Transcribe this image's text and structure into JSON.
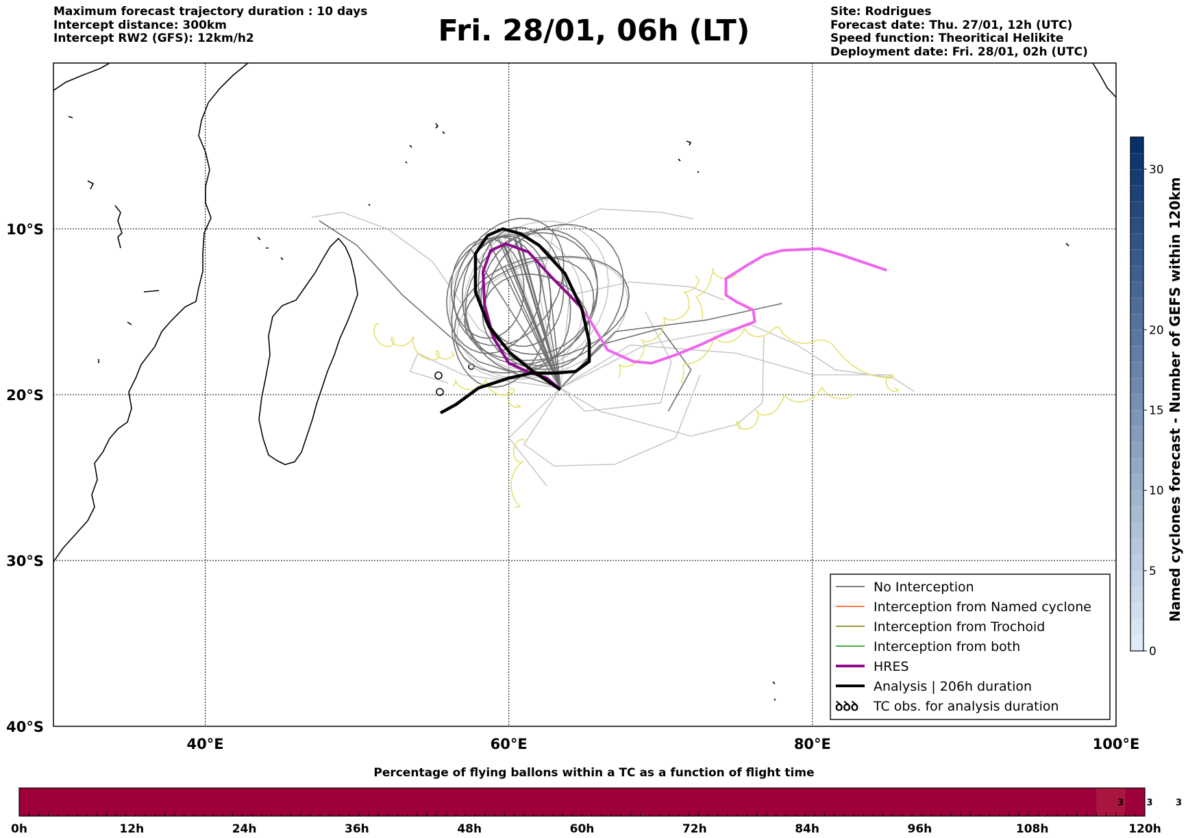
{
  "header": {
    "left": [
      "Maximum forecast trajectory duration : 10 days",
      "Intercept distance: 300km",
      "Intercept RW2 (GFS):  12km/h2"
    ],
    "title": "Fri. 28/01, 06h (LT)",
    "right": [
      "Site: Rodrigues",
      "Forecast date: Thu. 27/01, 12h (UTC)",
      "Speed function: Theoritical Helikite",
      "Deployment date: Fri. 28/01, 02h (UTC)"
    ]
  },
  "map": {
    "lon_range": [
      30,
      100
    ],
    "lat_range": [
      -40,
      0
    ],
    "lon_ticks": [
      {
        "value": 40,
        "label": "40°E"
      },
      {
        "value": 60,
        "label": "60°E"
      },
      {
        "value": 80,
        "label": "80°E"
      },
      {
        "value": 100,
        "label": "100°E"
      }
    ],
    "lat_ticks": [
      {
        "value": -10,
        "label": "10°S"
      },
      {
        "value": -20,
        "label": "20°S"
      },
      {
        "value": -30,
        "label": "30°S"
      },
      {
        "value": -40,
        "label": "40°S"
      }
    ],
    "grid": "dotted",
    "colors": {
      "no_interception": "#6e6e6e",
      "no_interception_light": "#c8c8c8",
      "named_cyclone": "#ff6a2a",
      "trochoid": "#8a8a20",
      "both": "#2aa02a",
      "hres": "#8b0a8b",
      "hres_ext": "#ee66ee",
      "analysis": "#000000",
      "tc_obs": "#e6e070"
    },
    "legend": {
      "position": "bottom-right",
      "items": [
        {
          "label": "No Interception",
          "style": "no_interception"
        },
        {
          "label": "Interception from Named cyclone",
          "style": "named_cyclone"
        },
        {
          "label": "Interception from Trochoid",
          "style": "trochoid"
        },
        {
          "label": "Interception from both",
          "style": "both"
        },
        {
          "label": "HRES",
          "style": "hres"
        },
        {
          "label": "Analysis | 206h duration",
          "style": "analysis"
        },
        {
          "label": "TC obs. for analysis duration",
          "style": "tc_symbol",
          "symbol": "ꝺꝺꝺ"
        }
      ]
    },
    "tracks": {
      "hres": [
        [
          63.3,
          -19.6
        ],
        [
          62.5,
          -19.0
        ],
        [
          61.2,
          -18.6
        ],
        [
          60.0,
          -18.1
        ],
        [
          59.0,
          -16.6
        ],
        [
          58.4,
          -14.6
        ],
        [
          58.3,
          -12.6
        ],
        [
          58.8,
          -11.3
        ],
        [
          59.8,
          -10.9
        ],
        [
          61.3,
          -11.4
        ],
        [
          62.8,
          -12.9
        ],
        [
          64.2,
          -14.2
        ],
        [
          64.6,
          -14.6
        ]
      ],
      "hres_ext": [
        [
          64.6,
          -14.6
        ],
        [
          65.4,
          -15.6
        ],
        [
          66.5,
          -17.3
        ],
        [
          68.2,
          -18.0
        ],
        [
          69.4,
          -18.1
        ],
        [
          71.0,
          -17.6
        ],
        [
          72.6,
          -17.0
        ],
        [
          74.0,
          -16.4
        ],
        [
          75.6,
          -15.8
        ],
        [
          76.2,
          -15.6
        ],
        [
          76.1,
          -14.9
        ],
        [
          75.0,
          -14.4
        ],
        [
          74.3,
          -14.0
        ],
        [
          74.3,
          -13.0
        ],
        [
          75.5,
          -12.3
        ],
        [
          76.8,
          -11.6
        ],
        [
          78.0,
          -11.3
        ],
        [
          80.5,
          -11.2
        ],
        [
          82.0,
          -11.6
        ],
        [
          84.9,
          -12.5
        ]
      ],
      "analysis": [
        [
          55.5,
          -21.1
        ],
        [
          56.5,
          -20.6
        ],
        [
          58.0,
          -19.6
        ],
        [
          60.0,
          -19.0
        ],
        [
          61.5,
          -18.7
        ],
        [
          63.0,
          -18.7
        ],
        [
          64.4,
          -18.6
        ],
        [
          65.3,
          -18.0
        ],
        [
          65.3,
          -16.8
        ],
        [
          64.8,
          -14.8
        ],
        [
          63.7,
          -12.7
        ],
        [
          62.0,
          -11.0
        ],
        [
          60.8,
          -10.3
        ],
        [
          59.6,
          -10.0
        ],
        [
          58.6,
          -10.4
        ],
        [
          57.8,
          -11.5
        ],
        [
          57.8,
          -13.8
        ],
        [
          58.7,
          -15.9
        ],
        [
          60.1,
          -17.5
        ],
        [
          61.6,
          -18.6
        ],
        [
          63.4,
          -19.7
        ]
      ]
    }
  },
  "colorbar_right": {
    "label": "Named cyclones forecast - Number of GEFS within 120km",
    "min": 0,
    "max": 32,
    "ticks": [
      0,
      5,
      10,
      15,
      20,
      30
    ],
    "color_low": "#deebf7",
    "color_high": "#08306b"
  },
  "bottom_bar": {
    "title": "Percentage of flying ballons within a TC as a function of flight time",
    "ticks": [
      "0h",
      "12h",
      "24h",
      "36h",
      "48h",
      "60h",
      "72h",
      "84h",
      "96h",
      "108h",
      "120h"
    ],
    "cell_values": [
      0,
      0,
      0,
      0,
      0,
      0,
      0,
      0,
      0,
      0,
      0,
      0,
      0,
      0,
      0,
      0,
      0,
      0,
      0,
      0,
      0,
      0,
      0,
      0,
      0,
      0,
      0,
      0,
      0,
      0,
      0,
      0,
      0,
      0,
      0,
      0,
      0,
      0,
      0,
      0,
      0,
      0,
      0,
      0,
      0,
      0,
      0,
      0,
      0,
      0,
      0,
      0,
      0,
      0,
      0,
      0,
      0,
      0,
      0,
      0,
      0,
      0,
      0,
      0,
      0,
      0,
      0,
      0,
      0,
      0,
      0,
      0,
      0,
      0,
      0,
      0,
      0,
      0,
      0,
      0,
      0,
      0,
      0,
      0,
      0,
      0,
      0,
      0,
      0,
      0,
      0,
      0,
      0,
      0,
      0,
      0,
      0,
      0,
      0,
      0,
      0,
      0,
      0,
      0,
      0,
      0,
      0,
      0,
      0,
      0,
      0,
      3,
      3,
      3,
      0,
      0
    ],
    "labeled_cells": [
      {
        "hour_index": 112,
        "text": "3"
      },
      {
        "hour_index": 115,
        "text": "3"
      },
      {
        "hour_index": 118,
        "text": "3"
      }
    ],
    "color_zero": "#9e003a",
    "color_labeled": "#a8163f"
  }
}
